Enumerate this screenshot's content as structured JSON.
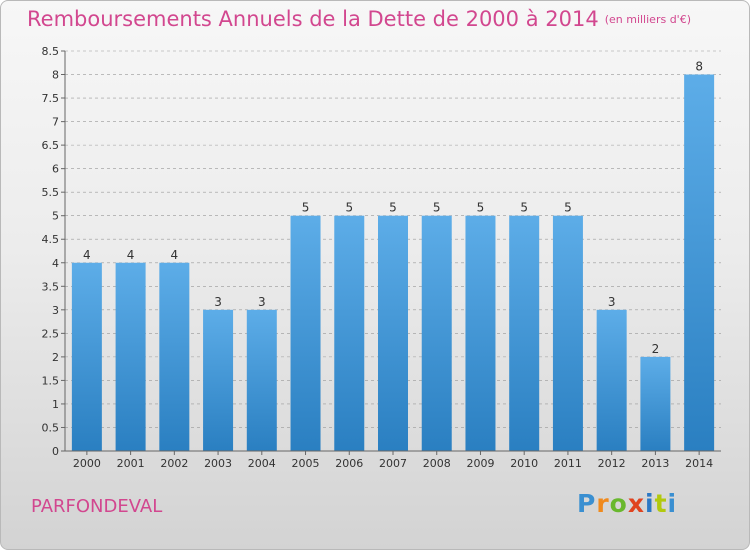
{
  "title": "Remboursements Annuels de la Dette de 2000 à 2014",
  "unit": "(en milliers d'€)",
  "place": "PARFONDEVAL",
  "logo": "Proxiti",
  "colors": {
    "bar_top": "#5dade8",
    "bar_bottom": "#2a7fc1",
    "title": "#d2478f",
    "grid": "#999999"
  },
  "chart_data": {
    "type": "bar",
    "title": "Remboursements Annuels de la Dette de 2000 à 2014",
    "subtitle": "(en milliers d'€)",
    "categories": [
      "2000",
      "2001",
      "2002",
      "2003",
      "2004",
      "2005",
      "2006",
      "2007",
      "2008",
      "2009",
      "2010",
      "2011",
      "2012",
      "2013",
      "2014"
    ],
    "values": [
      4,
      4,
      4,
      3,
      3,
      5,
      5,
      5,
      5,
      5,
      5,
      5,
      3,
      2,
      8
    ],
    "data_labels": [
      "4",
      "4",
      "4",
      "3",
      "3",
      "5",
      "5",
      "5",
      "5",
      "5",
      "5",
      "5",
      "3",
      "2",
      "8"
    ],
    "yticks": [
      "0",
      "0.5",
      "1",
      "1.5",
      "2",
      "2.5",
      "3",
      "3.5",
      "4",
      "4.5",
      "5",
      "5.5",
      "6",
      "6.5",
      "7",
      "7.5",
      "8",
      "8.5"
    ],
    "ylim": [
      0,
      8.5
    ],
    "grid": "dashed horizontal",
    "legend": "none"
  }
}
